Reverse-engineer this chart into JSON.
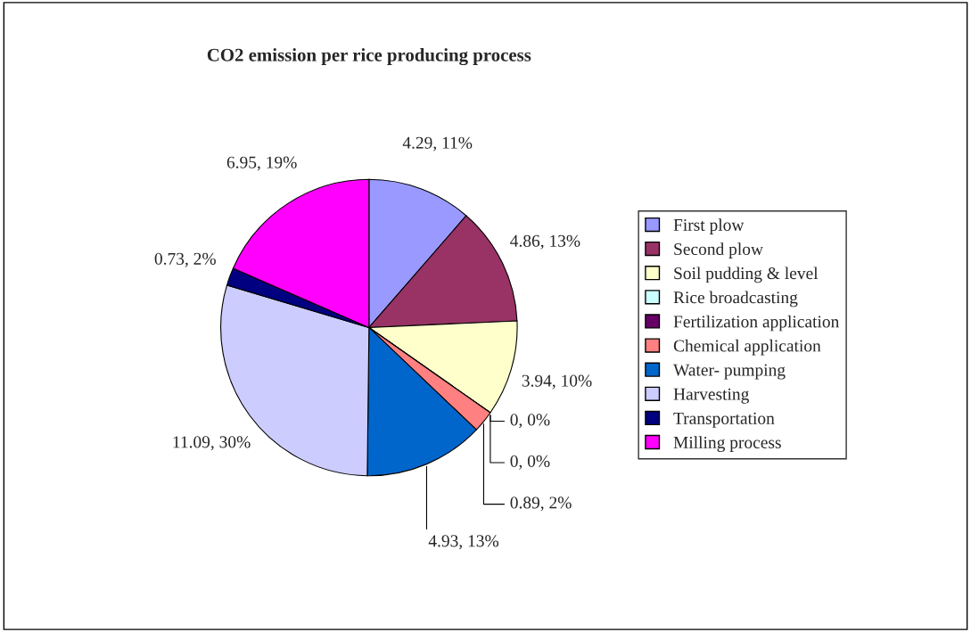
{
  "chart_data": {
    "type": "pie",
    "title": "CO2 emission per rice producing process",
    "categories": [
      "First plow",
      "Second plow",
      "Soil pudding & level",
      "Rice broadcasting",
      "Fertilization application",
      "Chemical application",
      "Water- pumping",
      "Harvesting",
      "Transportation",
      "Milling process"
    ],
    "values": [
      4.29,
      4.86,
      3.94,
      0,
      0,
      0.89,
      4.93,
      11.09,
      0.73,
      6.95
    ],
    "value_labels": [
      "4.29, 11%",
      "4.86, 13%",
      "3.94, 10%",
      "0, 0%",
      "0, 0%",
      "0.89, 2%",
      "4.93, 13%",
      "11.09, 30%",
      "0.73, 2%",
      "6.95, 19%"
    ],
    "colors": [
      "#9999ff",
      "#993366",
      "#ffffcc",
      "#ccffff",
      "#660066",
      "#ff8080",
      "#0066cc",
      "#ccccff",
      "#000080",
      "#ff00ff"
    ],
    "legend": "right"
  }
}
